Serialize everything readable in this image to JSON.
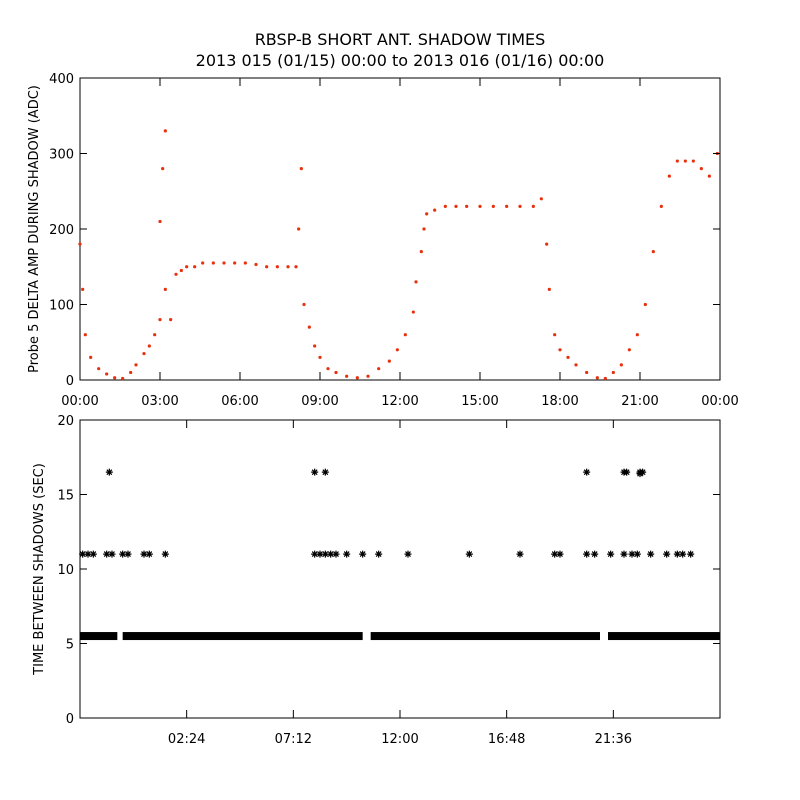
{
  "title": "RBSP-B SHORT ANT. SHADOW TIMES",
  "subtitle": "2013 015 (01/15) 00:00 to 2013 016 (01/16) 00:00",
  "colors": {
    "upper_points": "#e8300c",
    "lower_points": "#000000",
    "axes": "#000000"
  },
  "chart_data": [
    {
      "type": "scatter",
      "ylabel": "Probe 5 DELTA AMP DURING SHADOW (ADC)",
      "xlabel": "",
      "xlim": [
        0,
        24
      ],
      "ylim": [
        0,
        400
      ],
      "x_ticks": [
        "00:00",
        "03:00",
        "06:00",
        "09:00",
        "12:00",
        "15:00",
        "18:00",
        "21:00",
        "00:00"
      ],
      "y_ticks": [
        "0",
        "100",
        "200",
        "300",
        "400"
      ],
      "series": [
        {
          "points": [
            [
              0.0,
              180
            ],
            [
              0.1,
              120
            ],
            [
              0.2,
              60
            ],
            [
              0.4,
              30
            ],
            [
              0.7,
              15
            ],
            [
              1.0,
              8
            ],
            [
              1.3,
              3
            ],
            [
              1.6,
              2
            ],
            [
              1.9,
              10
            ],
            [
              2.1,
              20
            ],
            [
              2.4,
              35
            ],
            [
              2.6,
              45
            ],
            [
              2.8,
              60
            ],
            [
              3.0,
              80
            ],
            [
              3.2,
              120
            ],
            [
              3.0,
              210
            ],
            [
              3.1,
              280
            ],
            [
              3.2,
              330
            ],
            [
              3.4,
              80
            ],
            [
              3.6,
              140
            ],
            [
              3.8,
              145
            ],
            [
              4.0,
              150
            ],
            [
              4.3,
              150
            ],
            [
              4.6,
              155
            ],
            [
              5.0,
              155
            ],
            [
              5.4,
              155
            ],
            [
              5.8,
              155
            ],
            [
              6.2,
              155
            ],
            [
              6.6,
              153
            ],
            [
              7.0,
              150
            ],
            [
              7.4,
              150
            ],
            [
              7.8,
              150
            ],
            [
              8.1,
              150
            ],
            [
              8.2,
              200
            ],
            [
              8.3,
              280
            ],
            [
              8.4,
              100
            ],
            [
              8.6,
              70
            ],
            [
              8.8,
              45
            ],
            [
              9.0,
              30
            ],
            [
              9.3,
              15
            ],
            [
              9.6,
              10
            ],
            [
              10.0,
              5
            ],
            [
              10.4,
              3
            ],
            [
              10.8,
              5
            ],
            [
              11.2,
              15
            ],
            [
              11.6,
              25
            ],
            [
              11.9,
              40
            ],
            [
              12.2,
              60
            ],
            [
              12.5,
              90
            ],
            [
              12.6,
              130
            ],
            [
              12.8,
              170
            ],
            [
              12.9,
              200
            ],
            [
              13.0,
              220
            ],
            [
              13.3,
              225
            ],
            [
              13.7,
              230
            ],
            [
              14.1,
              230
            ],
            [
              14.5,
              230
            ],
            [
              15.0,
              230
            ],
            [
              15.5,
              230
            ],
            [
              16.0,
              230
            ],
            [
              16.5,
              230
            ],
            [
              17.0,
              230
            ],
            [
              17.3,
              240
            ],
            [
              17.5,
              180
            ],
            [
              17.6,
              120
            ],
            [
              17.8,
              60
            ],
            [
              18.0,
              40
            ],
            [
              18.3,
              30
            ],
            [
              18.6,
              20
            ],
            [
              19.0,
              10
            ],
            [
              19.4,
              3
            ],
            [
              19.7,
              2
            ],
            [
              20.0,
              10
            ],
            [
              20.3,
              20
            ],
            [
              20.6,
              40
            ],
            [
              20.9,
              60
            ],
            [
              21.2,
              100
            ],
            [
              21.5,
              170
            ],
            [
              21.8,
              230
            ],
            [
              22.1,
              270
            ],
            [
              22.4,
              290
            ],
            [
              22.7,
              290
            ],
            [
              23.0,
              290
            ],
            [
              23.3,
              280
            ],
            [
              23.6,
              270
            ],
            [
              23.9,
              300
            ]
          ]
        }
      ]
    },
    {
      "type": "scatter",
      "ylabel": "TIME BETWEEN SHADOWS (SEC)",
      "xlabel": "",
      "xlim": [
        0,
        24
      ],
      "ylim": [
        0,
        20
      ],
      "x_ticks": [
        "02:24",
        "07:12",
        "12:00",
        "16:48",
        "21:36"
      ],
      "y_ticks": [
        "0",
        "5",
        "10",
        "15",
        "20"
      ],
      "series": [
        {
          "points": [
            [
              0.1,
              11
            ],
            [
              0.3,
              11
            ],
            [
              0.5,
              11
            ],
            [
              1.0,
              11
            ],
            [
              1.2,
              11
            ],
            [
              1.6,
              11
            ],
            [
              1.8,
              11
            ],
            [
              2.4,
              11
            ],
            [
              2.6,
              11
            ],
            [
              3.2,
              11
            ],
            [
              1.1,
              16.5
            ],
            [
              8.8,
              11
            ],
            [
              9.0,
              11
            ],
            [
              9.2,
              11
            ],
            [
              9.4,
              11
            ],
            [
              9.6,
              11
            ],
            [
              10.0,
              11
            ],
            [
              10.6,
              11
            ],
            [
              11.2,
              11
            ],
            [
              12.3,
              11
            ],
            [
              14.6,
              11
            ],
            [
              16.5,
              11
            ],
            [
              17.8,
              11
            ],
            [
              18.0,
              11
            ],
            [
              19.0,
              11
            ],
            [
              19.3,
              11
            ],
            [
              19.9,
              11
            ],
            [
              20.4,
              11
            ],
            [
              20.7,
              11
            ],
            [
              20.9,
              11
            ],
            [
              21.4,
              11
            ],
            [
              22.0,
              11
            ],
            [
              22.4,
              11
            ],
            [
              22.6,
              11
            ],
            [
              22.9,
              11
            ],
            [
              8.8,
              16.5
            ],
            [
              9.2,
              16.5
            ],
            [
              19.0,
              16.5
            ],
            [
              20.4,
              16.5
            ],
            [
              20.5,
              16.5
            ],
            [
              21.0,
              16.5
            ],
            [
              21.1,
              16.5
            ],
            [
              21.0,
              16.4
            ]
          ],
          "band": {
            "y": 5.5,
            "x_ranges": [
              [
                0,
                1.4
              ],
              [
                1.6,
                10.6
              ],
              [
                10.9,
                19.5
              ],
              [
                19.8,
                24
              ]
            ]
          }
        }
      ]
    }
  ]
}
